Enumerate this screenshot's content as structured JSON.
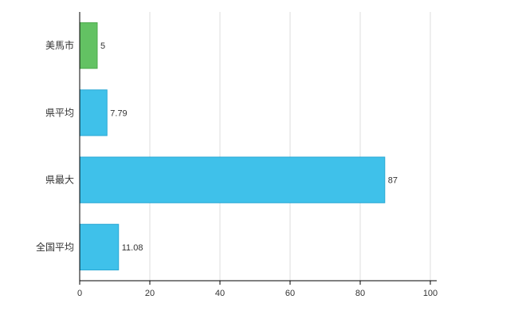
{
  "chart_data": {
    "type": "bar",
    "orientation": "horizontal",
    "title": "",
    "xlabel": "",
    "ylabel": "",
    "categories": [
      "美馬市",
      "県平均",
      "県最大",
      "全国平均"
    ],
    "values": [
      5,
      7.79,
      87,
      11.08
    ],
    "value_labels": [
      "5",
      "7.79",
      "87",
      "11.08"
    ],
    "bar_colors": [
      "#63c263",
      "#3fc1ea",
      "#3fc1ea",
      "#3fc1ea"
    ],
    "bar_border_colors": [
      "#4daa4d",
      "#2aa8d4",
      "#2aa8d4",
      "#2aa8d4"
    ],
    "xlim": [
      0,
      100
    ],
    "xticks": [
      0,
      20,
      40,
      60,
      80,
      100
    ],
    "xtick_labels": [
      "0",
      "20",
      "40",
      "60",
      "80",
      "100"
    ],
    "grid": true,
    "legend": false,
    "colors": {
      "background": "#ffffff",
      "axis": "#000000",
      "gridline": "#dddddd",
      "tick_text": "#333333",
      "category_text": "#333333",
      "value_text": "#333333"
    }
  },
  "layout_labels": {
    "chart_area": "horizontal-bar-chart"
  }
}
